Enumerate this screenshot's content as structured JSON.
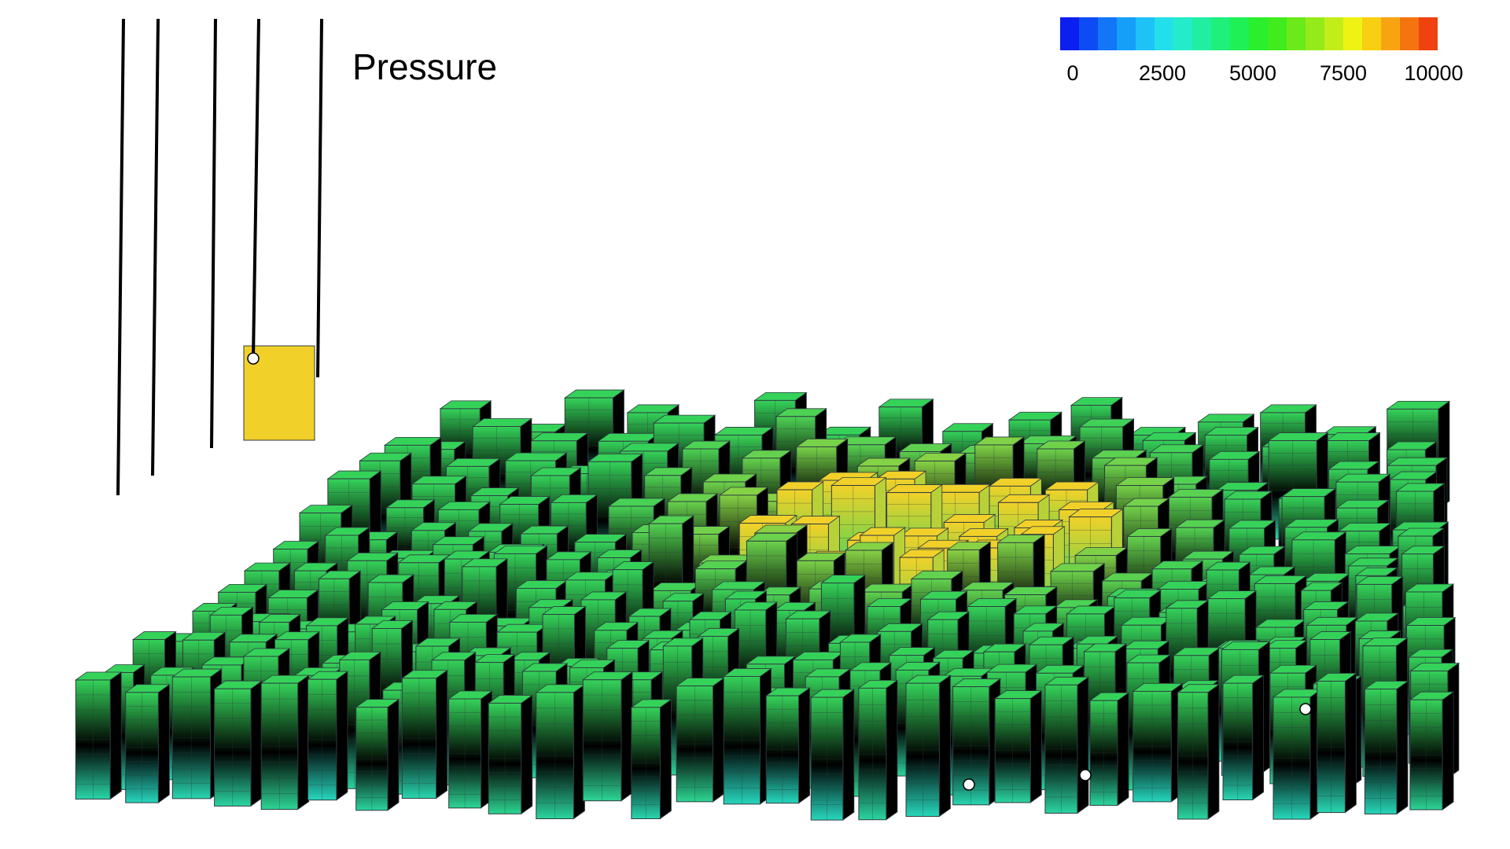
{
  "title": "Pressure",
  "legend": {
    "min": 0,
    "max": 10000,
    "ticks": [
      "0",
      "2500",
      "5000",
      "7500",
      "10000"
    ],
    "colors": [
      "#0a1ff0",
      "#0d4cf5",
      "#1177f7",
      "#169ff9",
      "#1fc2f7",
      "#23dfe9",
      "#24eccb",
      "#22eea1",
      "#1ef07a",
      "#1ef055",
      "#2bee2d",
      "#40ec1d",
      "#6aea1a",
      "#95ea19",
      "#c3ed19",
      "#eef314",
      "#f8cf12",
      "#f8a412",
      "#f4740f",
      "#ef4210"
    ]
  },
  "colors": {
    "low": "#26d7c2",
    "mid": "#35d25a",
    "high": "#f1d129",
    "edge": "#2e3a3f",
    "well": "#000000"
  }
}
